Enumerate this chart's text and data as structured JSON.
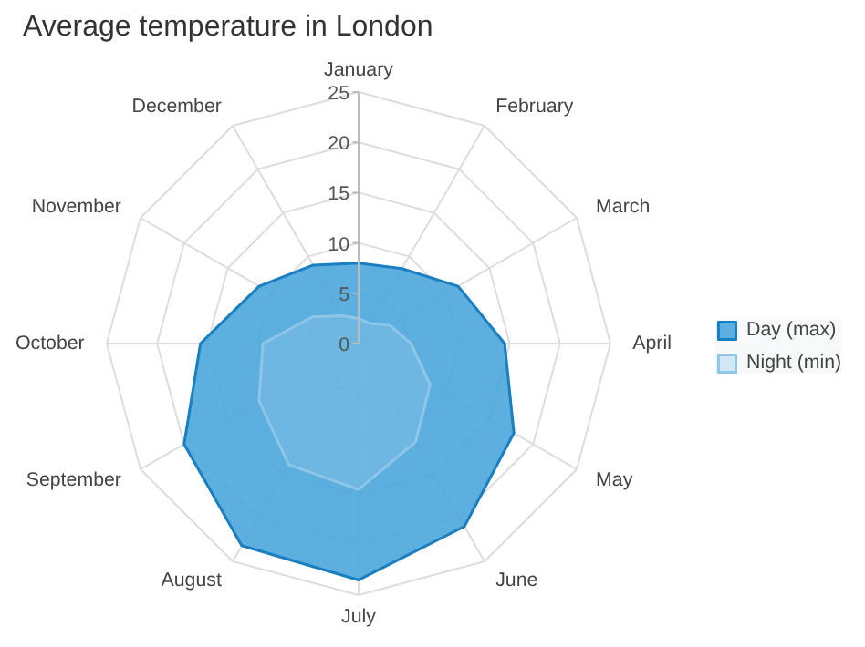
{
  "chart_data": {
    "type": "radar",
    "title": "Average temperature in London",
    "categories": [
      "January",
      "February",
      "March",
      "April",
      "May",
      "June",
      "July",
      "August",
      "September",
      "October",
      "November",
      "December"
    ],
    "series": [
      {
        "name": "Day (max)",
        "color": "#4ba6dc",
        "values": [
          8.0,
          8.6,
          11.4,
          14.5,
          17.8,
          21.0,
          23.5,
          23.2,
          20.0,
          15.7,
          11.4,
          9.0
        ]
      },
      {
        "name": "Night (min)",
        "color": "#8ec6e8",
        "values": [
          2.5,
          2.3,
          3.6,
          5.2,
          8.2,
          11.3,
          14.5,
          13.9,
          11.4,
          9.5,
          5.3,
          3.2
        ]
      }
    ],
    "ylim": [
      0,
      25
    ],
    "yticks": [
      0,
      5,
      10,
      15,
      20,
      25
    ],
    "grid": true,
    "legend": "right"
  }
}
